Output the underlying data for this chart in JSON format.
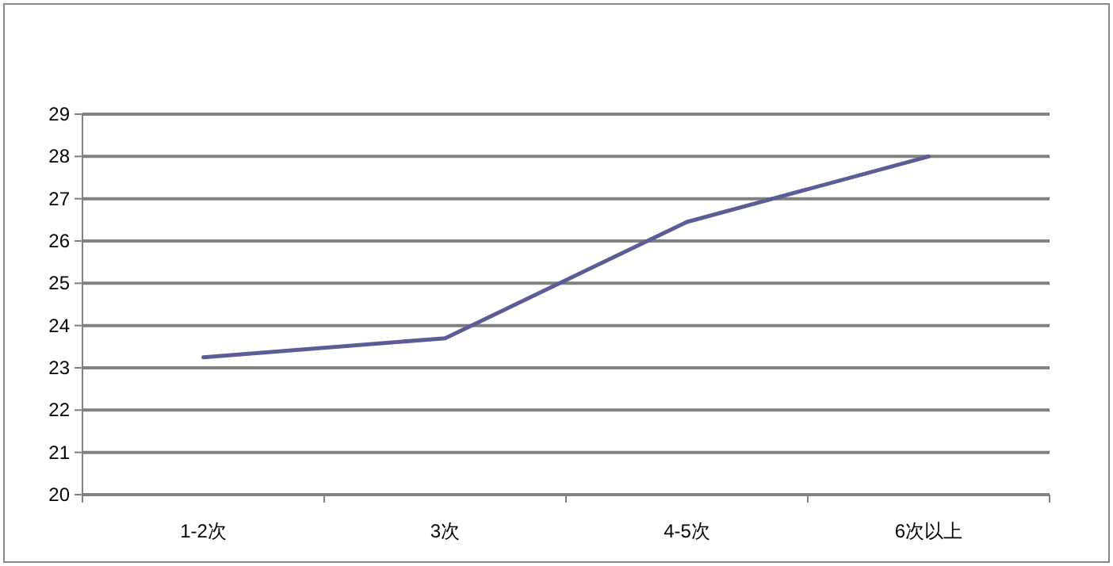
{
  "chart_data": {
    "type": "line",
    "categories": [
      "1-2次",
      "3次",
      "4-5次",
      "6次以上"
    ],
    "series": [
      {
        "color": "#5c5c96",
        "values": [
          23.25,
          23.7,
          26.45,
          28.0
        ]
      }
    ],
    "ylim": [
      20,
      29
    ],
    "yticks": [
      20,
      21,
      22,
      23,
      24,
      25,
      26,
      27,
      28,
      29
    ],
    "grid": "y",
    "marker": "none",
    "line_style": "solid"
  }
}
